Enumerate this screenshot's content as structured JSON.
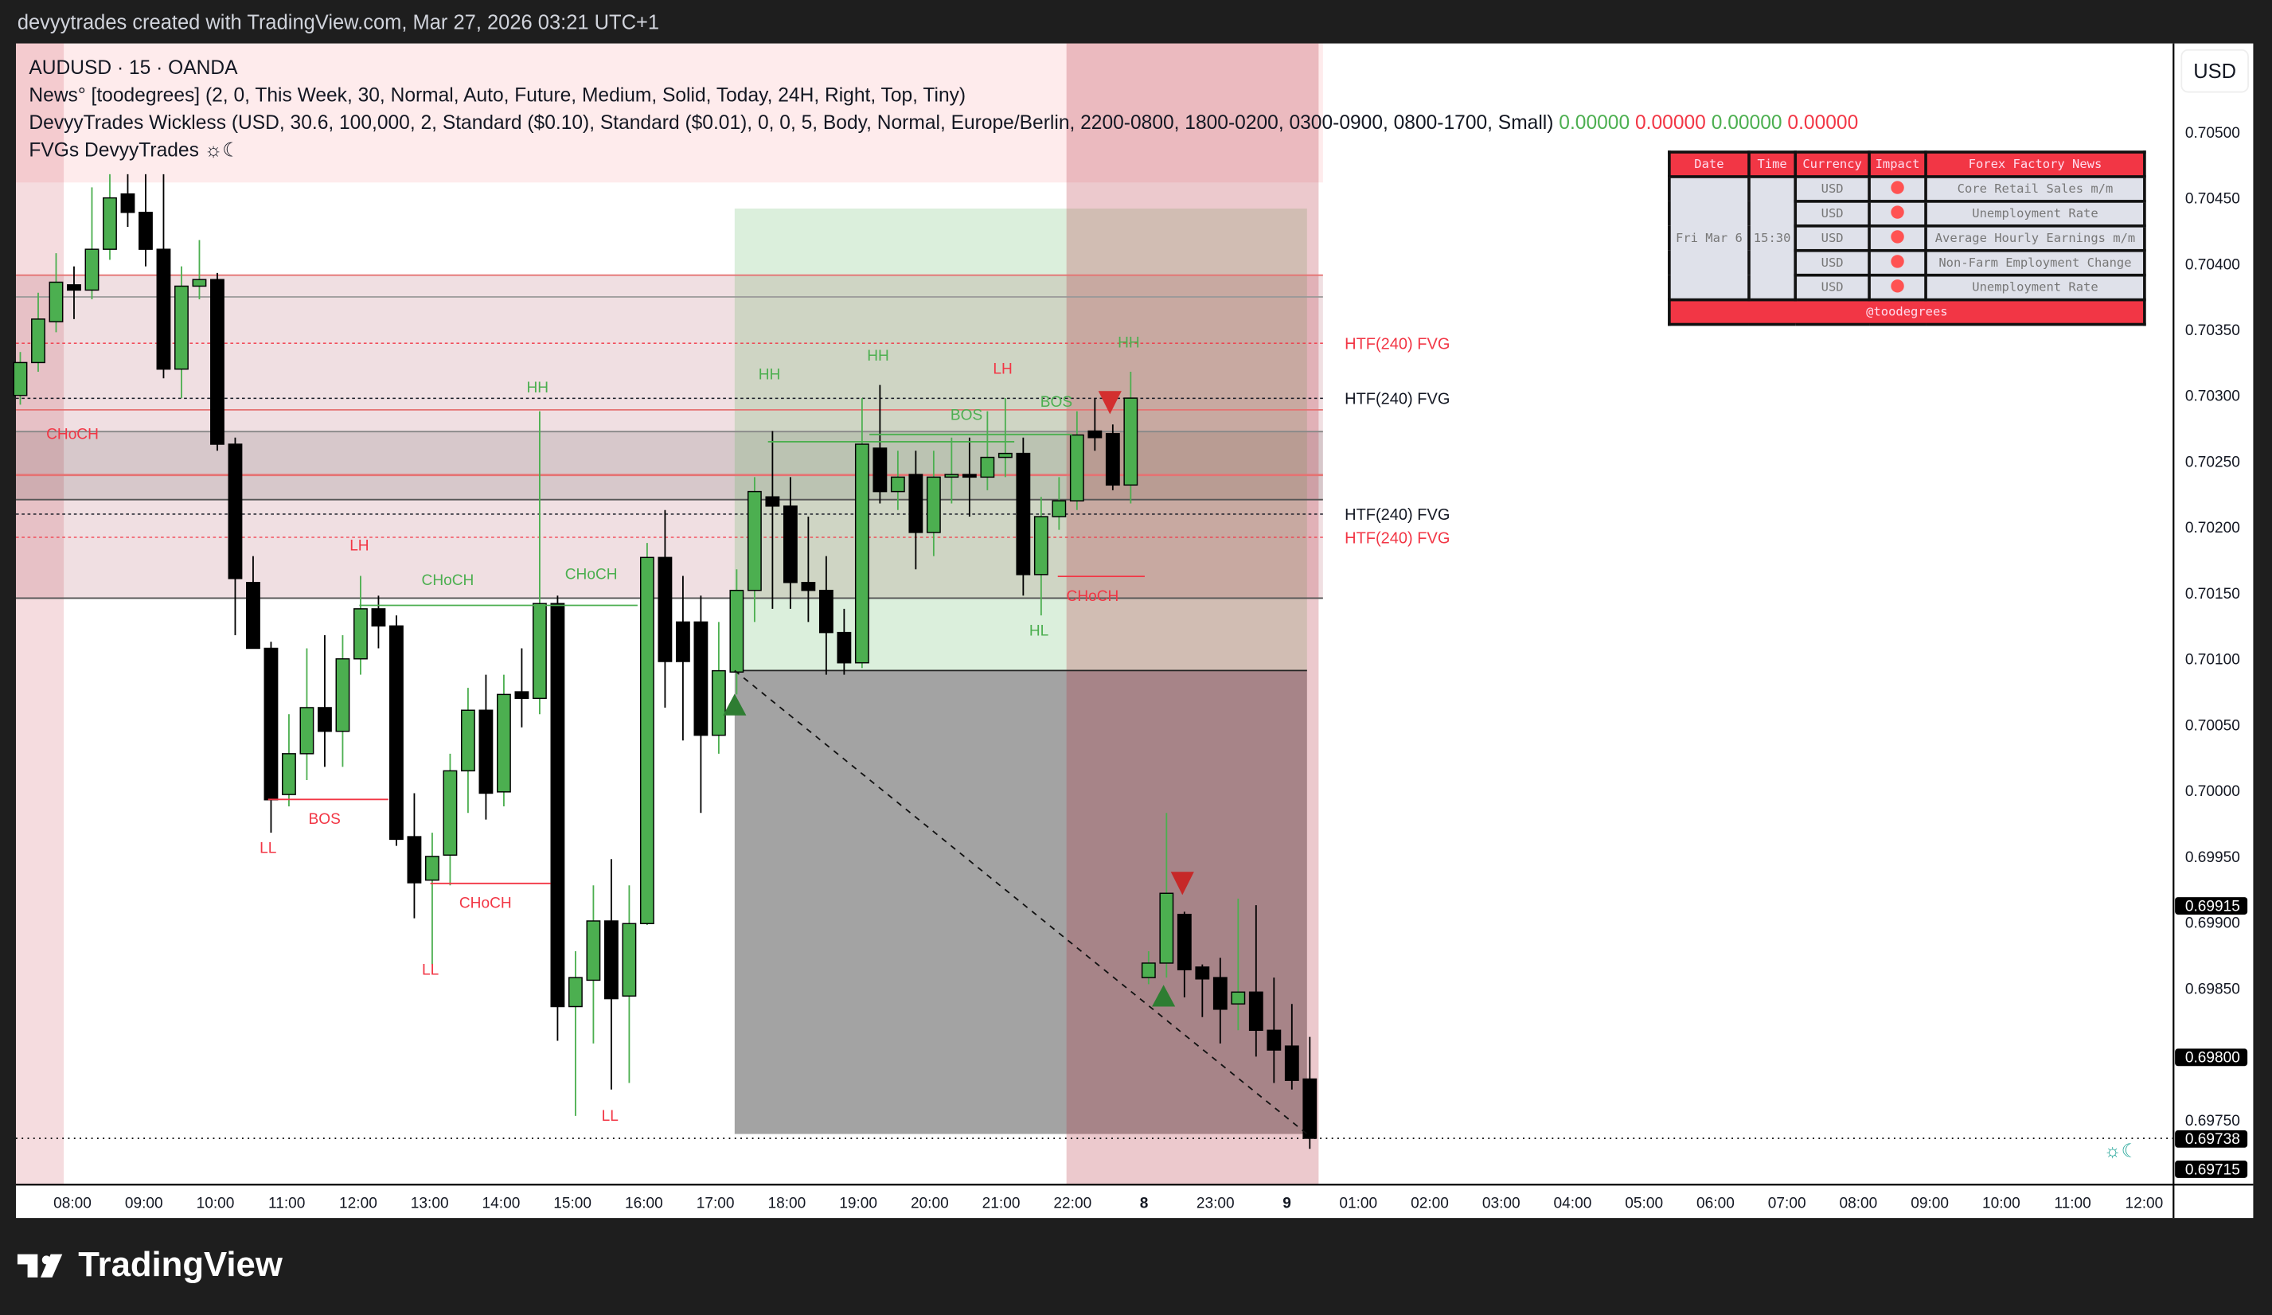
{
  "topbar": {
    "caption": "devyytrades created with TradingView.com, Mar 27, 2026 03:21 UTC+1"
  },
  "legend": {
    "symbol": "AUDUSD · 15 · OANDA",
    "news": "News° [toodegrees] (2, 0, This Week, 30, Normal, Auto, Future, Medium, Solid, Today, 24H, Right, Top, Tiny)",
    "wickless": "DevyyTrades Wickless (USD, 30.6, 100,000, 2, Standard ($0.10), Standard ($0.01), 0, 0, 5, Body, Normal, Europe/Berlin, 2200-0800, 1800-0200, 0300-0900, 0800-1700, Small)",
    "wickless_values": [
      "0.00000",
      "0.00000",
      "0.00000",
      "0.00000"
    ],
    "fvgs": "FVGs DevyyTrades ☼☾"
  },
  "news_table": {
    "headers": [
      "Date",
      "Time",
      "Currency",
      "Impact",
      "Forex Factory News"
    ],
    "date": "Fri Mar 6",
    "time": "15:30",
    "rows": [
      {
        "currency": "USD",
        "event": "Core Retail Sales m/m"
      },
      {
        "currency": "USD",
        "event": "Unemployment Rate"
      },
      {
        "currency": "USD",
        "event": "Average Hourly Earnings m/m"
      },
      {
        "currency": "USD",
        "event": "Non-Farm Employment Change"
      },
      {
        "currency": "USD",
        "event": "Unemployment Rate"
      }
    ],
    "footer": "@toodegrees",
    "impact_color": "#ff5252",
    "header_color": "#f23645"
  },
  "currency_button": "USD",
  "fvg_labels": [
    {
      "text": "HTF(240) FVG",
      "color": "#f23645"
    },
    {
      "text": "HTF(240) FVG",
      "color": "#131722"
    },
    {
      "text": "HTF(240) FVG",
      "color": "#131722"
    },
    {
      "text": "HTF(240) FVG",
      "color": "#f23645"
    }
  ],
  "chart_data": {
    "type": "candlestick",
    "symbol": "AUDUSD",
    "timeframe": "15",
    "ylim": [
      0.697,
      0.7054
    ],
    "y_ticks": [
      "0.70500",
      "0.70450",
      "0.70400",
      "0.70350",
      "0.70300",
      "0.70250",
      "0.70200",
      "0.70150",
      "0.70100",
      "0.70050",
      "0.70000",
      "0.69950",
      "0.69900",
      "0.69850",
      "0.69800",
      "0.69750"
    ],
    "price_badges": [
      "0.69915",
      "0.69800",
      "0.69738",
      "0.69715"
    ],
    "x_ticks": [
      "08:00",
      "09:00",
      "10:00",
      "11:00",
      "12:00",
      "13:00",
      "14:00",
      "15:00",
      "16:00",
      "17:00",
      "18:00",
      "19:00",
      "20:00",
      "21:00",
      "22:00",
      "8",
      "23:00",
      "9",
      "01:00",
      "02:00",
      "03:00",
      "04:00",
      "05:00",
      "06:00",
      "07:00",
      "08:00",
      "09:00",
      "10:00",
      "11:00",
      "12:00"
    ],
    "up_color": "#4caf50",
    "down_color": "#000000",
    "candles": [
      [
        0.70302,
        0.70335,
        0.70295,
        0.70327
      ],
      [
        0.70327,
        0.7038,
        0.7032,
        0.7036
      ],
      [
        0.70358,
        0.7041,
        0.7035,
        0.70388
      ],
      [
        0.70386,
        0.704,
        0.7036,
        0.70382
      ],
      [
        0.70382,
        0.7046,
        0.70375,
        0.70413
      ],
      [
        0.70413,
        0.7047,
        0.70405,
        0.70452
      ],
      [
        0.70455,
        0.7047,
        0.7043,
        0.70441
      ],
      [
        0.70441,
        0.7047,
        0.704,
        0.70413
      ],
      [
        0.70413,
        0.7047,
        0.70315,
        0.70322
      ],
      [
        0.70322,
        0.704,
        0.703,
        0.70385
      ],
      [
        0.70385,
        0.7042,
        0.70375,
        0.7039
      ],
      [
        0.7039,
        0.70395,
        0.7026,
        0.70265
      ],
      [
        0.70265,
        0.7027,
        0.7012,
        0.70163
      ],
      [
        0.7016,
        0.7018,
        0.7011,
        0.7011
      ],
      [
        0.7011,
        0.70115,
        0.6997,
        0.69995
      ],
      [
        0.69999,
        0.7006,
        0.6999,
        0.7003
      ],
      [
        0.7003,
        0.7011,
        0.7001,
        0.70065
      ],
      [
        0.70065,
        0.7012,
        0.7002,
        0.70047
      ],
      [
        0.70047,
        0.7012,
        0.7002,
        0.70102
      ],
      [
        0.70102,
        0.70165,
        0.7009,
        0.7014
      ],
      [
        0.7014,
        0.7015,
        0.7011,
        0.70127
      ],
      [
        0.70127,
        0.70135,
        0.6996,
        0.69965
      ],
      [
        0.69967,
        0.7,
        0.69905,
        0.69932
      ],
      [
        0.69934,
        0.6997,
        0.6987,
        0.69952
      ],
      [
        0.69953,
        0.7003,
        0.6993,
        0.70017
      ],
      [
        0.70017,
        0.7008,
        0.69985,
        0.70063
      ],
      [
        0.70063,
        0.7009,
        0.6998,
        0.7
      ],
      [
        0.70001,
        0.7009,
        0.6999,
        0.70075
      ],
      [
        0.70077,
        0.7011,
        0.7005,
        0.70072
      ],
      [
        0.70072,
        0.7029,
        0.7006,
        0.70144
      ],
      [
        0.70144,
        0.7015,
        0.69812,
        0.69838
      ],
      [
        0.69838,
        0.6988,
        0.69755,
        0.6986
      ],
      [
        0.69858,
        0.6993,
        0.6981,
        0.69903
      ],
      [
        0.69903,
        0.6995,
        0.69775,
        0.69844
      ],
      [
        0.69846,
        0.6993,
        0.6978,
        0.69901
      ],
      [
        0.69901,
        0.7019,
        0.699,
        0.70179
      ],
      [
        0.70179,
        0.70215,
        0.70065,
        0.701
      ],
      [
        0.7013,
        0.70165,
        0.7004,
        0.701
      ],
      [
        0.7013,
        0.7015,
        0.69985,
        0.70044
      ],
      [
        0.70044,
        0.7013,
        0.7003,
        0.70093
      ],
      [
        0.70092,
        0.7017,
        0.70075,
        0.70154
      ],
      [
        0.70154,
        0.7024,
        0.7013,
        0.70229
      ],
      [
        0.70225,
        0.70275,
        0.7014,
        0.70218
      ],
      [
        0.70218,
        0.7024,
        0.7014,
        0.7016
      ],
      [
        0.7016,
        0.7021,
        0.7013,
        0.70154
      ],
      [
        0.70154,
        0.7018,
        0.7009,
        0.70122
      ],
      [
        0.70122,
        0.7014,
        0.7009,
        0.70099
      ],
      [
        0.70099,
        0.703,
        0.70095,
        0.70265
      ],
      [
        0.70262,
        0.7031,
        0.7022,
        0.70229
      ],
      [
        0.70229,
        0.7026,
        0.70215,
        0.7024
      ],
      [
        0.70242,
        0.7026,
        0.7017,
        0.70198
      ],
      [
        0.70198,
        0.7026,
        0.7018,
        0.7024
      ],
      [
        0.7024,
        0.7027,
        0.7022,
        0.70242
      ],
      [
        0.70242,
        0.7027,
        0.7021,
        0.7024
      ],
      [
        0.7024,
        0.7029,
        0.7023,
        0.70255
      ],
      [
        0.70255,
        0.703,
        0.7024,
        0.70258
      ],
      [
        0.70258,
        0.7027,
        0.7015,
        0.70166
      ],
      [
        0.70166,
        0.70225,
        0.70135,
        0.7021
      ],
      [
        0.7021,
        0.7024,
        0.702,
        0.70222
      ],
      [
        0.70222,
        0.7029,
        0.70215,
        0.70272
      ],
      [
        0.70275,
        0.703,
        0.7026,
        0.7027
      ],
      [
        0.70273,
        0.7028,
        0.7023,
        0.70234
      ],
      [
        0.70234,
        0.7032,
        0.7022,
        0.703
      ],
      [
        0.6986,
        0.6988,
        0.69855,
        0.69871
      ],
      [
        0.69871,
        0.69985,
        0.6986,
        0.69924
      ],
      [
        0.69908,
        0.6991,
        0.69845,
        0.69866
      ],
      [
        0.69868,
        0.6987,
        0.6983,
        0.69859
      ],
      [
        0.6986,
        0.69875,
        0.6981,
        0.69836
      ],
      [
        0.6984,
        0.6992,
        0.6982,
        0.69849
      ],
      [
        0.69849,
        0.69915,
        0.698,
        0.6982
      ],
      [
        0.6982,
        0.6986,
        0.6978,
        0.69805
      ],
      [
        0.69808,
        0.6984,
        0.69775,
        0.69782
      ],
      [
        0.69783,
        0.69815,
        0.6973,
        0.69738
      ]
    ],
    "structure_labels": [
      {
        "text": "CHoCH",
        "color": "#f23645"
      },
      {
        "text": "LH",
        "color": "#f23645"
      },
      {
        "text": "CHoCH",
        "color": "#4caf50"
      },
      {
        "text": "HH",
        "color": "#4caf50"
      },
      {
        "text": "CHoCH",
        "color": "#4caf50"
      },
      {
        "text": "BOS",
        "color": "#f23645"
      },
      {
        "text": "LL",
        "color": "#f23645"
      },
      {
        "text": "LL",
        "color": "#f23645"
      },
      {
        "text": "CHoCH",
        "color": "#f23645"
      },
      {
        "text": "LL",
        "color": "#f23645"
      },
      {
        "text": "HH",
        "color": "#4caf50"
      },
      {
        "text": "HH",
        "color": "#4caf50"
      },
      {
        "text": "LH",
        "color": "#f23645"
      },
      {
        "text": "BOS",
        "color": "#4caf50"
      },
      {
        "text": "BOS",
        "color": "#4caf50"
      },
      {
        "text": "HH",
        "color": "#4caf50"
      },
      {
        "text": "HL",
        "color": "#4caf50"
      },
      {
        "text": "CHoCH",
        "color": "#f23645"
      }
    ]
  },
  "brand": "TradingView"
}
